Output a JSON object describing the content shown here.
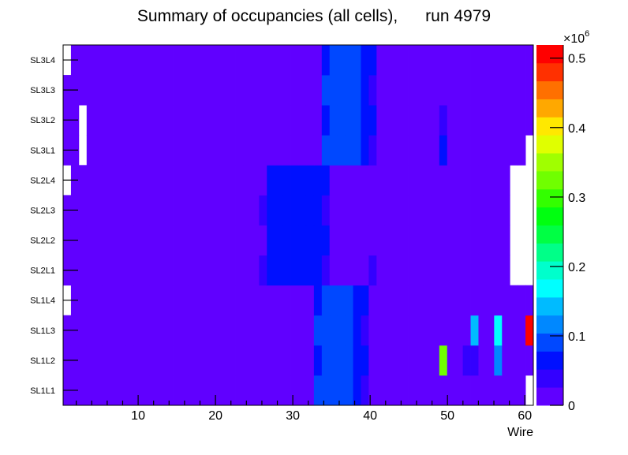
{
  "chart_data": {
    "type": "heatmap",
    "title": "Summary of occupancies (all cells),      run 4979",
    "xlabel": "Wire",
    "ylabel": "",
    "x_bins": 60,
    "xlim": [
      0.3,
      61.1
    ],
    "x_ticks": [
      10,
      20,
      30,
      40,
      50,
      60
    ],
    "y_categories": [
      "SL1L1",
      "SL1L2",
      "SL1L3",
      "SL1L4",
      "SL2L1",
      "SL2L2",
      "SL2L3",
      "SL2L4",
      "SL3L1",
      "SL3L2",
      "SL3L3",
      "SL3L4"
    ],
    "zlim": [
      0,
      519000
    ],
    "z_exponent_label": "×10",
    "z_exponent_power": "6",
    "z_ticks": [
      0,
      0.1,
      0.2,
      0.3,
      0.4,
      0.5
    ],
    "z_tick_labels": [
      "0",
      "0.1",
      "0.2",
      "0.3",
      "0.4",
      "0.5"
    ],
    "z_scale": 1000000,
    "palette": [
      "#6000ff",
      "#3300ff",
      "#0010ff",
      "#0048ff",
      "#0088ff",
      "#00bbff",
      "#00ffff",
      "#00ffcc",
      "#00ff88",
      "#00ff44",
      "#00ff10",
      "#33ff00",
      "#70ff00",
      "#a0ff00",
      "#e0ff00",
      "#ffe800",
      "#ffa800",
      "#ff7000",
      "#ff3000",
      "#ff0000"
    ],
    "default_value": 13000,
    "rows": {
      "SL1L1": [
        {
          "from": 33,
          "to": 37,
          "value": 91000
        },
        {
          "from": 38,
          "to": 38,
          "value": 65000
        },
        {
          "from": 39,
          "to": 39,
          "value": 39000
        },
        {
          "from": 60,
          "to": 60,
          "value": null
        }
      ],
      "SL1L2": [
        {
          "from": 33,
          "to": 33,
          "value": 65000
        },
        {
          "from": 34,
          "to": 37,
          "value": 91000
        },
        {
          "from": 38,
          "to": 39,
          "value": 65000
        },
        {
          "from": 49,
          "to": 49,
          "value": 325000
        },
        {
          "from": 52,
          "to": 53,
          "value": 39000
        },
        {
          "from": 56,
          "to": 56,
          "value": 117000
        }
      ],
      "SL1L3": [
        {
          "from": 33,
          "to": 37,
          "value": 91000
        },
        {
          "from": 38,
          "to": 38,
          "value": 65000
        },
        {
          "from": 39,
          "to": 39,
          "value": 39000
        },
        {
          "from": 53,
          "to": 53,
          "value": 143000
        },
        {
          "from": 56,
          "to": 56,
          "value": 169000
        },
        {
          "from": 60,
          "to": 60,
          "value": 507000
        }
      ],
      "SL1L4": [
        {
          "from": 1,
          "to": 1,
          "value": null
        },
        {
          "from": 33,
          "to": 33,
          "value": 65000
        },
        {
          "from": 34,
          "to": 37,
          "value": 91000
        },
        {
          "from": 38,
          "to": 39,
          "value": 65000
        }
      ],
      "SL2L1": [
        {
          "from": 26,
          "to": 26,
          "value": 39000
        },
        {
          "from": 27,
          "to": 33,
          "value": 65000
        },
        {
          "from": 34,
          "to": 34,
          "value": 39000
        },
        {
          "from": 40,
          "to": 40,
          "value": 39000
        },
        {
          "from": 58,
          "to": 60,
          "value": null
        }
      ],
      "SL2L2": [
        {
          "from": 27,
          "to": 34,
          "value": 65000
        },
        {
          "from": 58,
          "to": 60,
          "value": null
        }
      ],
      "SL2L3": [
        {
          "from": 26,
          "to": 26,
          "value": 39000
        },
        {
          "from": 27,
          "to": 33,
          "value": 65000
        },
        {
          "from": 34,
          "to": 34,
          "value": 39000
        },
        {
          "from": 58,
          "to": 60,
          "value": null
        }
      ],
      "SL2L4": [
        {
          "from": 1,
          "to": 1,
          "value": null
        },
        {
          "from": 27,
          "to": 34,
          "value": 65000
        },
        {
          "from": 58,
          "to": 60,
          "value": null
        }
      ],
      "SL3L1": [
        {
          "from": 3,
          "to": 3,
          "value": null
        },
        {
          "from": 34,
          "to": 38,
          "value": 91000
        },
        {
          "from": 39,
          "to": 39,
          "value": 65000
        },
        {
          "from": 40,
          "to": 40,
          "value": 39000
        },
        {
          "from": 49,
          "to": 49,
          "value": 65000
        },
        {
          "from": 60,
          "to": 60,
          "value": null
        }
      ],
      "SL3L2": [
        {
          "from": 3,
          "to": 3,
          "value": null
        },
        {
          "from": 34,
          "to": 34,
          "value": 65000
        },
        {
          "from": 35,
          "to": 38,
          "value": 91000
        },
        {
          "from": 39,
          "to": 40,
          "value": 65000
        },
        {
          "from": 49,
          "to": 49,
          "value": 39000
        }
      ],
      "SL3L3": [
        {
          "from": 34,
          "to": 38,
          "value": 91000
        },
        {
          "from": 39,
          "to": 39,
          "value": 65000
        },
        {
          "from": 40,
          "to": 40,
          "value": 39000
        }
      ],
      "SL3L4": [
        {
          "from": 1,
          "to": 1,
          "value": null
        },
        {
          "from": 34,
          "to": 34,
          "value": 65000
        },
        {
          "from": 35,
          "to": 38,
          "value": 91000
        },
        {
          "from": 39,
          "to": 40,
          "value": 65000
        }
      ]
    }
  }
}
